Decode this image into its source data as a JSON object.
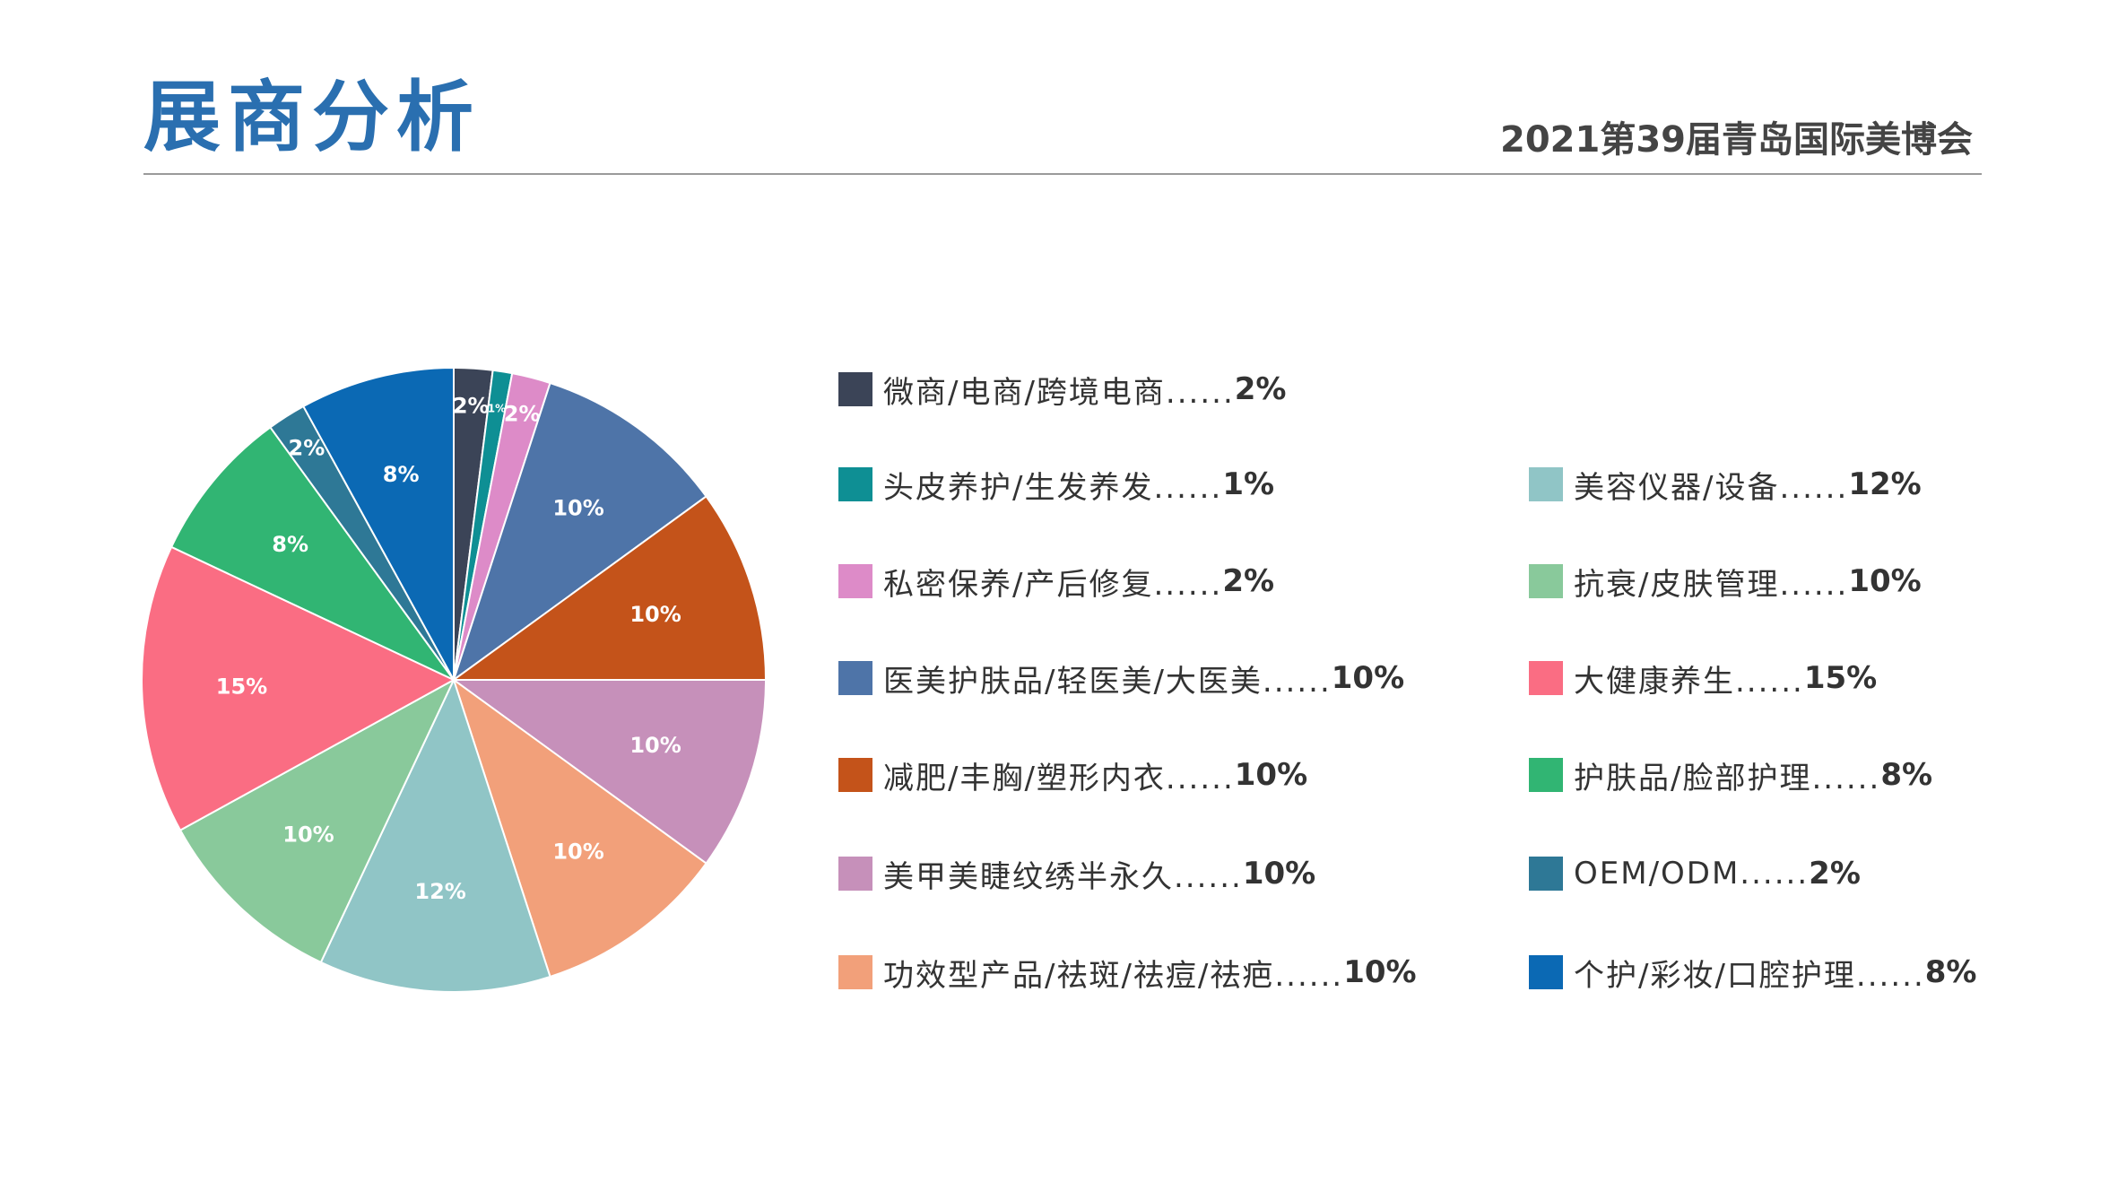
{
  "header": {
    "title": "展商分析",
    "event": "2021第39届青岛国际美博会"
  },
  "chart_data": {
    "type": "pie",
    "title": "",
    "slices": [
      {
        "label": "微商/电商/跨境电商",
        "value": 2,
        "display": "2%",
        "color": "#3b4457",
        "legend": "微商/电商/跨境电商......",
        "legend_value": "2%"
      },
      {
        "label": "头皮养护/生发养发",
        "value": 1,
        "display": "1%",
        "color": "#0e8f94",
        "legend": "头皮养护/生发养发......",
        "legend_value": "1%"
      },
      {
        "label": "私密保养/产后修复",
        "value": 2,
        "display": "2%",
        "color": "#dd8bc8",
        "legend": "私密保养/产后修复......",
        "legend_value": "2%"
      },
      {
        "label": "医美护肤品/轻医美/大医美",
        "value": 10,
        "display": "10%",
        "color": "#4e74a8",
        "legend": " 医美护肤品/轻医美/大医美......",
        "legend_value": "10%"
      },
      {
        "label": "减肥/丰胸/塑形内衣",
        "value": 10,
        "display": "10%",
        "color": "#c4531a",
        "legend": "减肥/丰胸/塑形内衣......",
        "legend_value": "10%"
      },
      {
        "label": "美甲美睫纹绣半永久",
        "value": 10,
        "display": "10%",
        "color": "#c690ba",
        "legend": "美甲美睫纹绣半永久......",
        "legend_value": "10%"
      },
      {
        "label": "功效型产品/祛斑/祛痘/祛疤",
        "value": 10,
        "display": "10%",
        "color": "#f2a07a",
        "legend": "功效型产品/祛斑/祛痘/祛疤......",
        "legend_value": "10%"
      },
      {
        "label": "美容仪器/设备",
        "value": 12,
        "display": "12%",
        "color": "#90c5c6",
        "legend": "美容仪器/设备......",
        "legend_value": "12%"
      },
      {
        "label": "抗衰/皮肤管理",
        "value": 10,
        "display": "10%",
        "color": "#89c99b",
        "legend": "抗衰/皮肤管理......",
        "legend_value": "10%"
      },
      {
        "label": "大健康养生",
        "value": 15,
        "display": "15%",
        "color": "#fa6d83",
        "legend": "大健康养生......",
        "legend_value": "15%"
      },
      {
        "label": "护肤品/脸部护理",
        "value": 8,
        "display": "8%",
        "color": "#31b573",
        "legend": "护肤品/脸部护理......",
        "legend_value": "8%"
      },
      {
        "label": "OEM/ODM",
        "value": 2,
        "display": "2%",
        "color": "#2e7896",
        "legend": "OEM/ODM......",
        "legend_value": "2%"
      },
      {
        "label": "个护/彩妆/口腔护理",
        "value": 8,
        "display": "8%",
        "color": "#0b69b4",
        "legend": "个护/彩妆/口腔护理......",
        "legend_value": "8%"
      }
    ],
    "legend_placement": "right"
  }
}
